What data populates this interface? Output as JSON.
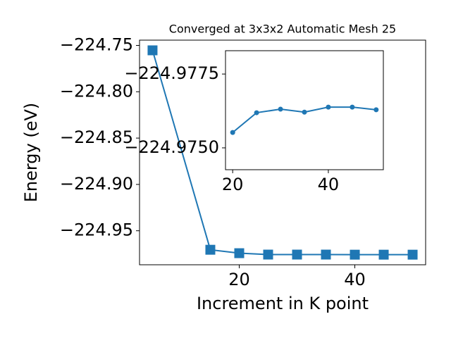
{
  "chart_data": [
    {
      "type": "line",
      "title": "Converged at 3x3x2 Automatic Mesh 25",
      "xlabel": "Increment in K point",
      "ylabel": "Energy (eV)",
      "x": [
        5,
        15,
        20,
        25,
        30,
        35,
        40,
        45,
        50
      ],
      "series": [
        {
          "color": "#1f77b4",
          "marker": "square",
          "values": [
            -224.7553,
            -224.9705,
            -224.9742,
            -224.9757,
            -224.9757,
            -224.9757,
            -224.9758,
            -224.9758,
            -224.9758
          ]
        }
      ],
      "xlim": [
        2.75,
        52.25
      ],
      "xticks": [
        20,
        40
      ],
      "ylim": [
        -224.9867,
        -224.7443
      ],
      "yticks": [
        {
          "value": -224.95,
          "label": "−224.95"
        },
        {
          "value": -224.9,
          "label": "−224.90"
        },
        {
          "value": -224.85,
          "label": "−224.85"
        },
        {
          "value": -224.8,
          "label": "−224.80"
        },
        {
          "value": -224.75,
          "label": "−224.75"
        }
      ]
    },
    {
      "type": "line",
      "x": [
        20,
        25,
        30,
        35,
        40,
        45,
        50
      ],
      "series": [
        {
          "color": "#1f77b4",
          "marker": "circle",
          "values": [
            -224.97552,
            -224.97619,
            -224.97631,
            -224.97621,
            -224.97638,
            -224.97638,
            -224.97629
          ]
        }
      ],
      "xlim": [
        18.5,
        51.5
      ],
      "xticks": [
        20,
        40
      ],
      "ylim": [
        -224.97426,
        -224.97829
      ],
      "yticks": [
        {
          "value": -224.975,
          "label": "−224.9750"
        },
        {
          "value": -224.9775,
          "label": "−224.9775"
        }
      ]
    }
  ]
}
